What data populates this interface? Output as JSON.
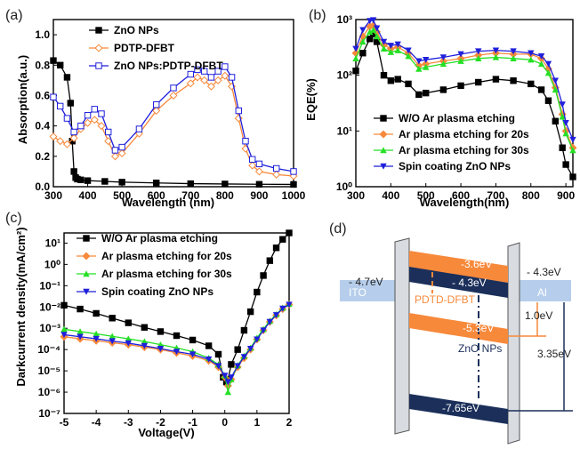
{
  "panels": {
    "a": "(a)",
    "b": "(b)",
    "c": "(c)",
    "d": "(d)"
  },
  "colors": {
    "black": "#000000",
    "orange": "#f7893b",
    "blue": "#1f1fdc",
    "green": "#25e025",
    "navy": "#1b2f5a",
    "lightblue": "#a9c6e8"
  },
  "chart_data": [
    {
      "id": "a",
      "type": "line",
      "xlabel": "Wavelength (nm)",
      "ylabel": "Absorption(a.u.)",
      "xlim": [
        300,
        1000
      ],
      "ylim": [
        0.0,
        1.1
      ],
      "xticks": [
        "300",
        "400",
        "500",
        "600",
        "700",
        "800",
        "900",
        "1000"
      ],
      "yticks": [
        "0.0",
        "0.2",
        "0.4",
        "0.6",
        "0.8",
        "1.0"
      ],
      "legend_position": "top-left",
      "series": [
        {
          "name": "ZnO NPs",
          "color": "#000000",
          "marker": "square-filled",
          "x": [
            300,
            320,
            340,
            350,
            355,
            360,
            365,
            370,
            380,
            400,
            450,
            500,
            600,
            700,
            800,
            900,
            1000
          ],
          "y": [
            0.83,
            0.8,
            0.72,
            0.55,
            0.3,
            0.1,
            0.06,
            0.05,
            0.045,
            0.04,
            0.035,
            0.03,
            0.025,
            0.02,
            0.018,
            0.016,
            0.015
          ]
        },
        {
          "name": "PDTP-DFBT",
          "color": "#f7893b",
          "marker": "diamond-open",
          "x": [
            300,
            320,
            340,
            360,
            380,
            400,
            420,
            440,
            460,
            480,
            500,
            550,
            600,
            650,
            700,
            720,
            740,
            760,
            780,
            800,
            820,
            840,
            860,
            880,
            900,
            950,
            1000
          ],
          "y": [
            0.33,
            0.3,
            0.28,
            0.32,
            0.38,
            0.42,
            0.44,
            0.4,
            0.3,
            0.2,
            0.22,
            0.35,
            0.5,
            0.6,
            0.68,
            0.72,
            0.7,
            0.66,
            0.7,
            0.73,
            0.66,
            0.45,
            0.25,
            0.14,
            0.1,
            0.08,
            0.07
          ]
        },
        {
          "name": "ZnO NPs:PDTP-DFBT",
          "color": "#1f1fdc",
          "marker": "square-open",
          "x": [
            300,
            320,
            340,
            360,
            380,
            400,
            420,
            440,
            460,
            480,
            500,
            550,
            600,
            650,
            700,
            720,
            740,
            760,
            780,
            800,
            820,
            840,
            860,
            880,
            900,
            950,
            1000
          ],
          "y": [
            0.59,
            0.53,
            0.45,
            0.36,
            0.4,
            0.47,
            0.51,
            0.48,
            0.36,
            0.24,
            0.26,
            0.38,
            0.54,
            0.65,
            0.74,
            0.77,
            0.76,
            0.72,
            0.76,
            0.79,
            0.72,
            0.5,
            0.3,
            0.18,
            0.15,
            0.12,
            0.1
          ]
        }
      ]
    },
    {
      "id": "b",
      "type": "line",
      "xlabel": "Wavelength(nm)",
      "ylabel": "EQE(%)",
      "yscale": "log",
      "xlim": [
        300,
        920
      ],
      "ylim": [
        1,
        1000
      ],
      "xticks": [
        "300",
        "400",
        "500",
        "600",
        "700",
        "800",
        "900"
      ],
      "yticks": [
        "10⁰",
        "10¹",
        "10²",
        "10³"
      ],
      "legend_position": "bottom-center",
      "series": [
        {
          "name": "W/O Ar plasma etching",
          "color": "#000000",
          "marker": "square-filled",
          "x": [
            300,
            320,
            340,
            350,
            360,
            380,
            400,
            420,
            450,
            480,
            500,
            550,
            600,
            650,
            700,
            750,
            800,
            830,
            850,
            870,
            890,
            900,
            920
          ],
          "y": [
            120,
            250,
            450,
            550,
            400,
            100,
            80,
            85,
            70,
            45,
            48,
            55,
            65,
            75,
            85,
            80,
            70,
            55,
            35,
            15,
            5,
            2.5,
            1.5
          ]
        },
        {
          "name": "Ar plasma etching for 20s",
          "color": "#f7893b",
          "marker": "diamond-filled",
          "x": [
            300,
            320,
            340,
            350,
            360,
            380,
            400,
            420,
            450,
            480,
            500,
            550,
            600,
            650,
            700,
            750,
            800,
            830,
            850,
            870,
            890,
            900,
            920
          ],
          "y": [
            250,
            500,
            750,
            780,
            600,
            350,
            300,
            320,
            250,
            150,
            160,
            180,
            200,
            230,
            250,
            240,
            240,
            200,
            130,
            60,
            20,
            10,
            5
          ]
        },
        {
          "name": "Ar plasma etching for 30s",
          "color": "#25e025",
          "marker": "triangle-up",
          "x": [
            300,
            320,
            340,
            350,
            360,
            380,
            400,
            420,
            450,
            480,
            500,
            550,
            600,
            650,
            700,
            750,
            800,
            830,
            850,
            870,
            890,
            900,
            920
          ],
          "y": [
            200,
            400,
            600,
            650,
            500,
            300,
            260,
            280,
            220,
            130,
            140,
            160,
            180,
            200,
            210,
            200,
            190,
            160,
            110,
            55,
            18,
            9,
            4.5
          ]
        },
        {
          "name": "Spin coating ZnO NPs",
          "color": "#1f1fdc",
          "marker": "triangle-down",
          "x": [
            300,
            320,
            340,
            350,
            360,
            380,
            400,
            420,
            450,
            480,
            500,
            550,
            600,
            650,
            700,
            750,
            800,
            830,
            850,
            870,
            890,
            900,
            920
          ],
          "y": [
            300,
            650,
            950,
            980,
            700,
            400,
            340,
            360,
            280,
            180,
            190,
            210,
            240,
            270,
            280,
            270,
            250,
            220,
            160,
            80,
            30,
            14,
            7
          ]
        }
      ]
    },
    {
      "id": "c",
      "type": "line",
      "xlabel": "Voltage(V)",
      "ylabel": "Darkcurrent density(mA/cm²)",
      "yscale": "log",
      "xlim": [
        -5,
        2
      ],
      "ylim": [
        1e-07,
        30
      ],
      "xticks": [
        "-5",
        "-4",
        "-3",
        "-2",
        "-1",
        "0",
        "1",
        "2"
      ],
      "yticks": [
        "10⁻⁷",
        "10⁻⁶",
        "10⁻⁵",
        "10⁻⁴",
        "10⁻³",
        "10⁻²",
        "10⁻¹",
        "10⁰",
        "10¹"
      ],
      "legend_position": "top-left",
      "series": [
        {
          "name": "W/O Ar plasma etching",
          "color": "#000000",
          "marker": "square-filled",
          "x": [
            -5,
            -4.5,
            -4,
            -3.5,
            -3,
            -2.5,
            -2,
            -1.5,
            -1,
            -0.5,
            -0.2,
            -0.05,
            0.05,
            0.1,
            0.2,
            0.4,
            0.6,
            0.8,
            1,
            1.2,
            1.4,
            1.6,
            1.8,
            2
          ],
          "y": [
            0.012,
            0.008,
            0.005,
            0.003,
            0.0018,
            0.0011,
            0.0007,
            0.00045,
            0.00028,
            0.00015,
            6e-05,
            5e-06,
            3e-06,
            4e-06,
            2e-05,
            0.0001,
            0.0008,
            0.006,
            0.05,
            0.3,
            1.5,
            6,
            15,
            30
          ]
        },
        {
          "name": "Ar plasma etching for 20s",
          "color": "#f7893b",
          "marker": "diamond-filled",
          "x": [
            -5,
            -4.5,
            -4,
            -3.5,
            -3,
            -2.5,
            -2,
            -1.5,
            -1,
            -0.5,
            -0.2,
            0,
            0.1,
            0.2,
            0.4,
            0.6,
            0.8,
            1,
            1.2,
            1.4,
            1.6,
            1.8,
            2
          ],
          "y": [
            0.0004,
            0.00032,
            0.00026,
            0.00021,
            0.00017,
            0.00013,
            0.0001,
            7e-05,
            5e-05,
            3e-05,
            1.5e-05,
            5e-06,
            2e-06,
            4e-06,
            1.5e-05,
            4e-05,
            0.0001,
            0.0003,
            0.0008,
            0.002,
            0.004,
            0.008,
            0.013
          ]
        },
        {
          "name": "Ar plasma etching for 30s",
          "color": "#25e025",
          "marker": "triangle-up",
          "x": [
            -5,
            -4.5,
            -4,
            -3.5,
            -3,
            -2.5,
            -2,
            -1.5,
            -1,
            -0.5,
            -0.2,
            0,
            0.1,
            0.2,
            0.4,
            0.6,
            0.8,
            1,
            1.2,
            1.4,
            1.6,
            1.8,
            2
          ],
          "y": [
            0.0009,
            0.0007,
            0.00055,
            0.00042,
            0.00032,
            0.00024,
            0.00017,
            0.00012,
            8e-05,
            4e-05,
            2e-05,
            6e-06,
            1e-06,
            4e-06,
            1.8e-05,
            5e-05,
            0.00012,
            0.00035,
            0.0009,
            0.0022,
            0.0045,
            0.009,
            0.014
          ]
        },
        {
          "name": "Spin coating ZnO NPs",
          "color": "#1f1fdc",
          "marker": "triangle-down",
          "x": [
            -5,
            -4.5,
            -4,
            -3.5,
            -3,
            -2.5,
            -2,
            -1.5,
            -1,
            -0.5,
            -0.2,
            0,
            0.1,
            0.2,
            0.4,
            0.6,
            0.8,
            1,
            1.2,
            1.4,
            1.6,
            1.8,
            2
          ],
          "y": [
            0.0005,
            0.0004,
            0.00032,
            0.00025,
            0.0002,
            0.00015,
            0.00011,
            8e-05,
            6e-05,
            3.5e-05,
            1.7e-05,
            6e-06,
            3e-06,
            5e-06,
            1.7e-05,
            4.5e-05,
            0.00011,
            0.0003,
            0.0008,
            0.002,
            0.0042,
            0.0085,
            0.013
          ]
        }
      ]
    }
  ],
  "diagram": {
    "labels": {
      "ito_wf": "- 4.7eV",
      "ito": "ITO",
      "al_wf": "- 4.3eV",
      "al": "Al",
      "lumo_d": "-3.6eV",
      "lumo_z": "- 4.3eV",
      "polymer": "PDTD-DFBT",
      "homo_d": "-5.3eV",
      "zno": "ZnO NPs",
      "vb_z": "-7.65eV",
      "gap1": "1.0eV",
      "gap2": "3.35eV"
    }
  }
}
